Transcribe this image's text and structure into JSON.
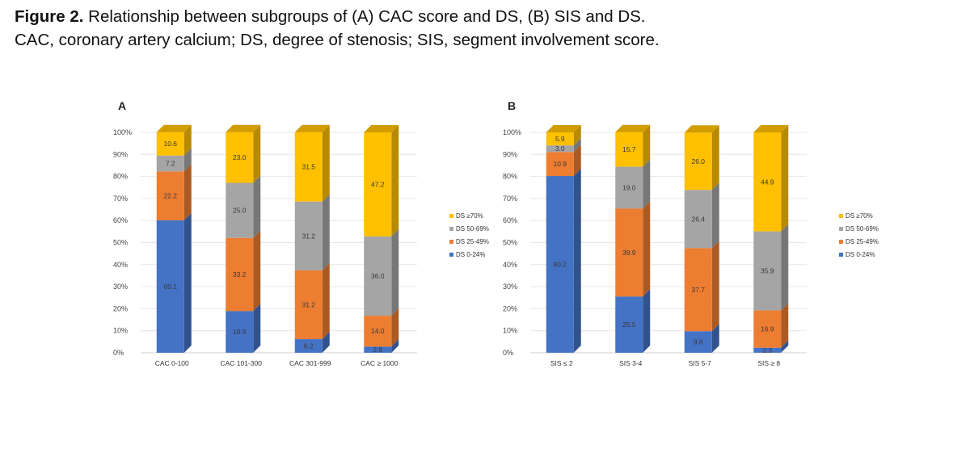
{
  "caption": {
    "figure_label": "Figure 2.",
    "line1": "Relationship between subgroups of (A) CAC score and DS, (B) SIS and DS.",
    "line2": "CAC, coronary artery calcium; DS, degree of stenosis; SIS, segment involvement score."
  },
  "colors": {
    "DS 0-24%": "#4472c4",
    "DS 25-49%": "#ed7d31",
    "DS 50-69%": "#a5a5a5",
    "DS ≥70%": "#ffc000"
  },
  "chart_data": [
    {
      "panel": "A",
      "type": "bar",
      "stacked": true,
      "percent": true,
      "title": "",
      "xlabel": "",
      "ylabel": "",
      "ylim": [
        0,
        100
      ],
      "yticks": [
        "0%",
        "10%",
        "20%",
        "30%",
        "40%",
        "50%",
        "60%",
        "70%",
        "80%",
        "90%",
        "100%"
      ],
      "categories": [
        "CAC 0-100",
        "CAC 101-300",
        "CAC 301-999",
        "CAC ≥ 1000"
      ],
      "series": [
        {
          "name": "DS 0-24%",
          "values": [
            60.1,
            18.9,
            6.2,
            2.8
          ],
          "labels": [
            "60.1",
            "18.9",
            "6.2",
            "2.8"
          ]
        },
        {
          "name": "DS 25-49%",
          "values": [
            22.2,
            33.2,
            31.2,
            14.0
          ],
          "labels": [
            "22.2",
            "33.2",
            "31.2",
            "14.0"
          ]
        },
        {
          "name": "DS 50-69%",
          "values": [
            7.2,
            25.0,
            31.2,
            36.0
          ],
          "labels": [
            "7.2",
            "25.0",
            "31.2",
            "36.0"
          ]
        },
        {
          "name": "DS ≥70%",
          "values": [
            10.6,
            23.0,
            31.5,
            47.2
          ],
          "labels": [
            "10.6",
            "23.0",
            "31.5",
            "47.2"
          ]
        }
      ],
      "legend": [
        "DS ≥70%",
        "DS 50-69%",
        "DS 25-49%",
        "DS 0-24%"
      ],
      "legend_position": "right"
    },
    {
      "panel": "B",
      "type": "bar",
      "stacked": true,
      "percent": true,
      "title": "",
      "xlabel": "",
      "ylabel": "",
      "ylim": [
        0,
        100
      ],
      "yticks": [
        "0%",
        "10%",
        "20%",
        "30%",
        "40%",
        "50%",
        "60%",
        "70%",
        "80%",
        "90%",
        "100%"
      ],
      "categories": [
        "SIS ≤ 2",
        "SIS 3-4",
        "SIS 5-7",
        "SIS ≥ 8"
      ],
      "series": [
        {
          "name": "DS 0-24%",
          "values": [
            80.2,
            25.5,
            9.8,
            2.3
          ],
          "labels": [
            "80.2",
            "25.5",
            "9.8",
            "2.3"
          ]
        },
        {
          "name": "DS 25-49%",
          "values": [
            10.9,
            39.9,
            37.7,
            16.9
          ],
          "labels": [
            "10.9",
            "39.9",
            "37.7",
            "16.9"
          ]
        },
        {
          "name": "DS 50-69%",
          "values": [
            3.0,
            19.0,
            26.4,
            35.9
          ],
          "labels": [
            "3.0",
            "19.0",
            "26.4",
            "35.9"
          ]
        },
        {
          "name": "DS ≥70%",
          "values": [
            5.9,
            15.7,
            26.0,
            44.9
          ],
          "labels": [
            "5.9",
            "15.7",
            "26.0",
            "44.9"
          ]
        }
      ],
      "legend": [
        "DS ≥70%",
        "DS 50-69%",
        "DS 25-49%",
        "DS 0-24%"
      ],
      "legend_position": "right"
    }
  ]
}
